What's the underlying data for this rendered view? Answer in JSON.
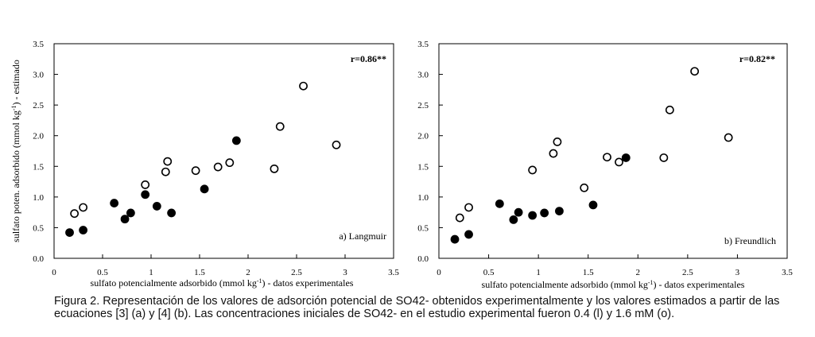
{
  "caption": {
    "line1": "Figura 2. Representación de los valores de adsorción potencial de SO42- obtenidos experimentalmente y los valores estimados a partir de las",
    "line2": "ecuaciones [3] (a) y [4] (b). Las concentraciones iniciales de SO42- en el estudio experimental fueron 0.4 (l) y 1.6 mM (o)."
  },
  "chart_data": [
    {
      "type": "scatter",
      "panel_label": "a) Langmuir",
      "annotation": "r=0.86**",
      "xlabel": "sulfato potencialmente adsorbido (mmol kg-1) - datos experimentales",
      "ylabel": "sulfato poten. adsorbido (mmol kg-1) - estimado",
      "xlim": [
        0,
        3.5
      ],
      "ylim": [
        0,
        3.5
      ],
      "xticks": [
        "0",
        "0.5",
        "1",
        "1.5",
        "2",
        "2.5",
        "3",
        "3.5"
      ],
      "yticks": [
        "0.0",
        "0.5",
        "1.0",
        "1.5",
        "2.0",
        "2.5",
        "3.0",
        "3.5"
      ],
      "series": [
        {
          "marker": "filled",
          "x": [
            0.16,
            0.3,
            0.62,
            0.73,
            0.79,
            0.94,
            1.06,
            1.21,
            1.55,
            1.88
          ],
          "y": [
            0.42,
            0.46,
            0.9,
            0.64,
            0.74,
            1.04,
            0.85,
            0.74,
            1.13,
            1.92
          ]
        },
        {
          "marker": "open",
          "x": [
            0.21,
            0.3,
            0.94,
            1.15,
            1.17,
            1.46,
            1.69,
            1.81,
            2.27,
            2.33,
            2.57,
            2.91
          ],
          "y": [
            0.73,
            0.83,
            1.2,
            1.41,
            1.58,
            1.43,
            1.49,
            1.56,
            1.46,
            2.15,
            2.81,
            1.85
          ]
        }
      ]
    },
    {
      "type": "scatter",
      "panel_label": "b) Freundlich",
      "annotation": "r=0.82**",
      "xlabel": "sulfato potencialmente adsorbido (mmol kg-1) - datos experimentales",
      "ylabel": "",
      "xlim": [
        0,
        3.5
      ],
      "ylim": [
        0,
        3.5
      ],
      "xticks": [
        "0",
        "0.5",
        "1",
        "1.5",
        "2",
        "2.5",
        "3",
        "3.5"
      ],
      "yticks": [
        "0.0",
        "0.5",
        "1.0",
        "1.5",
        "2.0",
        "2.5",
        "3.0",
        "3.5"
      ],
      "series": [
        {
          "marker": "filled",
          "x": [
            0.16,
            0.3,
            0.61,
            0.75,
            0.8,
            0.94,
            1.06,
            1.21,
            1.55,
            1.88
          ],
          "y": [
            0.31,
            0.39,
            0.89,
            0.63,
            0.75,
            0.7,
            0.74,
            0.77,
            0.87,
            1.64
          ]
        },
        {
          "marker": "open",
          "x": [
            0.21,
            0.3,
            0.94,
            1.15,
            1.19,
            1.46,
            1.69,
            1.81,
            2.26,
            2.32,
            2.57,
            2.91
          ],
          "y": [
            0.66,
            0.83,
            1.44,
            1.71,
            1.9,
            1.15,
            1.65,
            1.57,
            1.64,
            2.42,
            3.05,
            1.97
          ]
        }
      ]
    }
  ]
}
